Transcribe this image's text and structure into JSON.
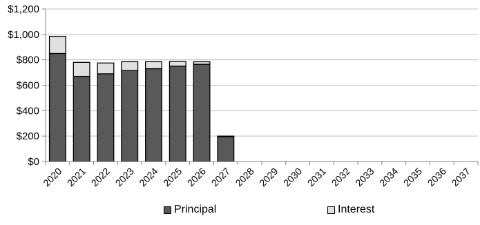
{
  "chart_data": {
    "type": "bar",
    "stacked": true,
    "title": "",
    "xlabel": "",
    "ylabel": "",
    "categories": [
      "2020",
      "2021",
      "2022",
      "2023",
      "2024",
      "2025",
      "2026",
      "2027",
      "2028",
      "2029",
      "2030",
      "2031",
      "2032",
      "2033",
      "2034",
      "2035",
      "2036",
      "2037"
    ],
    "series": [
      {
        "name": "Principal",
        "color": "#595959",
        "values": [
          850,
          670,
          690,
          715,
          730,
          750,
          765,
          195,
          0,
          0,
          0,
          0,
          0,
          0,
          0,
          0,
          0,
          0
        ]
      },
      {
        "name": "Interest",
        "color": "#e0e0e0",
        "values": [
          135,
          110,
          85,
          70,
          55,
          37,
          20,
          5,
          0,
          0,
          0,
          0,
          0,
          0,
          0,
          0,
          0,
          0
        ]
      }
    ],
    "ylim": [
      0,
      1200
    ],
    "yticks": [
      0,
      200,
      400,
      600,
      800,
      1000,
      1200
    ],
    "ytick_labels": [
      "$0",
      "$200",
      "$400",
      "$600",
      "$800",
      "$1,000",
      "$1,200"
    ],
    "grid": true,
    "legend_position": "bottom"
  }
}
